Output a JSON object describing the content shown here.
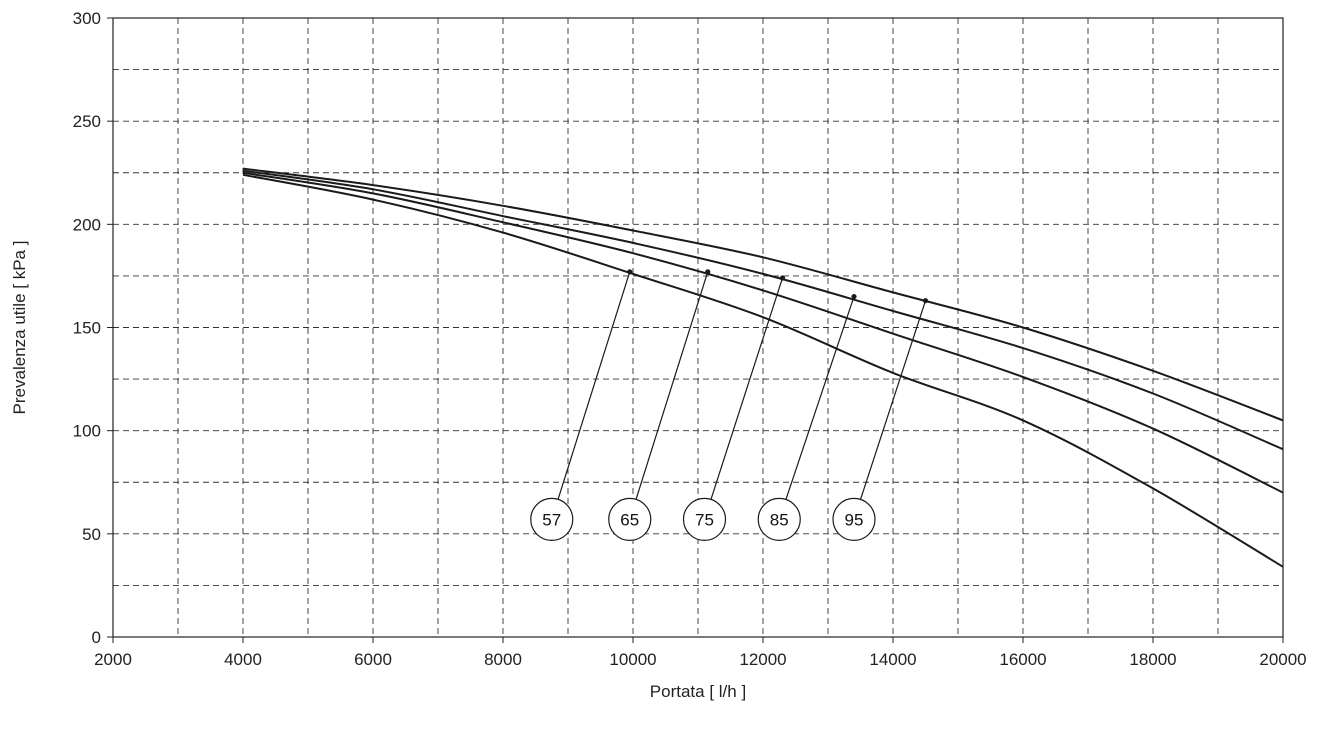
{
  "chart_data": {
    "type": "line",
    "title": "",
    "xlabel": "Portata  [ l/h ]",
    "ylabel": "Prevalenza utile  [ kPa ]",
    "xlim": [
      2000,
      20000
    ],
    "ylim": [
      0,
      300
    ],
    "x_ticks": [
      "2000",
      "4000",
      "6000",
      "8000",
      "10000",
      "12000",
      "14000",
      "16000",
      "18000",
      "20000"
    ],
    "y_ticks": [
      "0",
      "50",
      "100",
      "150",
      "200",
      "250",
      "300"
    ],
    "x_ticks_values": [
      2000,
      4000,
      6000,
      8000,
      10000,
      12000,
      14000,
      16000,
      18000,
      20000
    ],
    "y_ticks_values": [
      0,
      50,
      100,
      150,
      200,
      250,
      300
    ],
    "x_grid_step": 1000,
    "y_grid_step": 25,
    "grid": true,
    "grid_style": "dashed",
    "line_color": "#1a1a1a",
    "series": [
      {
        "name": "57",
        "x": [
          4000,
          6000,
          8000,
          10000,
          12000,
          14000,
          16000,
          18000,
          20000
        ],
        "y": [
          224,
          212,
          196,
          176,
          155,
          128,
          105,
          72,
          34
        ],
        "marker": [
          9950,
          177
        ],
        "bubble": [
          8750,
          57
        ]
      },
      {
        "name": "65",
        "x": [
          4000,
          6000,
          8000,
          10000,
          12000,
          14000,
          16000,
          18000,
          20000
        ],
        "y": [
          225,
          215,
          201,
          186,
          168,
          147,
          126,
          101,
          70
        ],
        "marker": [
          11150,
          177
        ],
        "bubble": [
          9950,
          57
        ]
      },
      {
        "name": "75",
        "x": [
          4000,
          6000,
          8000,
          10000,
          12000,
          14000,
          16000,
          18000,
          20000
        ],
        "y": [
          226,
          217,
          204,
          191,
          176,
          158,
          140,
          118,
          91
        ],
        "marker": [
          12300,
          174
        ],
        "bubble": [
          11100,
          57
        ]
      },
      {
        "name": "85",
        "x": [
          4000,
          6000,
          8000,
          10000,
          12000,
          14000,
          16000,
          18000,
          20000
        ],
        "y": [
          227,
          219,
          209,
          197,
          184,
          167,
          150,
          129,
          105
        ],
        "marker": [
          13400,
          165
        ],
        "bubble": [
          12250,
          57
        ]
      },
      {
        "name": "95",
        "x": [
          4000,
          6000,
          8000,
          10000,
          12000,
          14000,
          16000,
          18000,
          20000
        ],
        "y": [
          227,
          219,
          209,
          197,
          184,
          167,
          150,
          129,
          105
        ],
        "marker": [
          14500,
          163
        ],
        "bubble": [
          13400,
          57
        ]
      }
    ]
  }
}
